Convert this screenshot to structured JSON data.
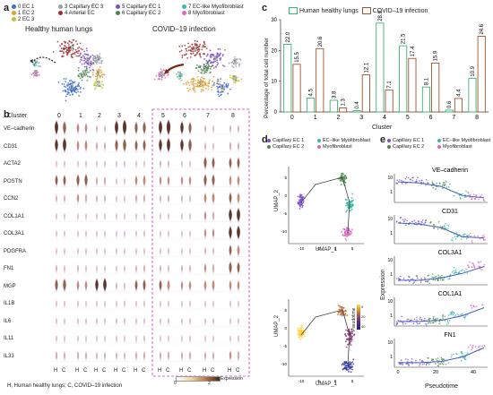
{
  "panel_a": {
    "letter": "a",
    "legend": [
      {
        "num": "0",
        "label": "EC 1",
        "color": "#3b6fd6"
      },
      {
        "num": "1",
        "label": "EC 2",
        "color": "#e0a030"
      },
      {
        "num": "2",
        "label": "EC 3",
        "color": "#b8c640"
      },
      {
        "num": "3",
        "label": "Capillary EC 3",
        "color": "#9aa0a8"
      },
      {
        "num": "4",
        "label": "Arterial EC",
        "color": "#a03030"
      },
      {
        "num": "5",
        "label": "Capillary EC 1",
        "color": "#7b52c8"
      },
      {
        "num": "6",
        "label": "Capillary EC 2",
        "color": "#4a8a50"
      },
      {
        "num": "7",
        "label": "EC-like Myofibroblast",
        "color": "#3cb8a8"
      },
      {
        "num": "8",
        "label": "Myofibroblast",
        "color": "#d868c0"
      }
    ],
    "title_healthy": "Healthy human lungs",
    "title_covid": "COVID–19 infection"
  },
  "panel_b": {
    "letter": "b",
    "cluster_label": "Cluster",
    "clusters": [
      "0",
      "1",
      "2",
      "3",
      "4",
      "5",
      "6",
      "7",
      "8"
    ],
    "genes": [
      "VE–cadherin",
      "CD31",
      "ACTA2",
      "POSTN",
      "CCN2",
      "COL1A1",
      "COL3A1",
      "PDGFRA",
      "FN1",
      "MGP",
      "IL1B",
      "IL6",
      "IL11",
      "IL33"
    ],
    "hc_labels": [
      "H",
      "C"
    ],
    "footnote": "H, Human healthy lungs; C, COVID–19 infection",
    "colorbar_label": "Expression",
    "colorbar_ticks": [
      "0",
      "2"
    ]
  },
  "panel_c": {
    "letter": "c",
    "legend_healthy": "Human healthy lungs",
    "legend_covid": "COVID–19 infection",
    "color_healthy": "#3cb371",
    "color_covid": "#a0522d"
  },
  "chart_data": {
    "type": "bar",
    "categories": [
      "0",
      "1",
      "2",
      "3",
      "4",
      "5",
      "6",
      "7",
      "8"
    ],
    "series": [
      {
        "name": "Human healthy lungs",
        "values": [
          22.0,
          4.5,
          3.8,
          0.4,
          28.9,
          21.5,
          8.1,
          0.6,
          10.9
        ]
      },
      {
        "name": "COVID–19 infection",
        "values": [
          15.5,
          20.6,
          1.3,
          12.1,
          7.1,
          17.4,
          15.9,
          4.4,
          24.6
        ]
      }
    ],
    "value_labels": {
      "healthy": [
        "22.0",
        "4.5",
        "3.8",
        "0.4",
        "28.9",
        "21.5",
        "8.1",
        "0.6",
        "10.9"
      ],
      "covid": [
        "15.5",
        "20.6",
        "1.3",
        "12.1",
        "7.1",
        "17.4",
        "15.9",
        "4.4",
        "24.6"
      ]
    },
    "xlabel": "Cluster",
    "ylabel": "Percentage of total cell number",
    "ylim": [
      0,
      30
    ],
    "yticks": [
      "0",
      "10",
      "20",
      "30"
    ]
  },
  "panel_d": {
    "letter": "d",
    "legend": [
      {
        "label": "Capillary EC 1",
        "color": "#7b52c8"
      },
      {
        "label": "EC–like Myofibroblast",
        "color": "#3cb8a8"
      },
      {
        "label": "Capillary EC 2",
        "color": "#4a8a50"
      },
      {
        "label": "Myofibroblast",
        "color": "#d868c0"
      }
    ],
    "xlabel": "UMAP_1",
    "ylabel": "UMAP_2",
    "xticks": [
      "-10",
      "-5",
      "0",
      "5"
    ],
    "yticks_top": [
      "5",
      "0",
      "-5",
      "-10"
    ],
    "yticks_bottom": [
      "5",
      "0",
      "-5",
      "-10"
    ],
    "pseudotime_label": "Pseudotime",
    "pseudotime_ticks": [
      "0",
      "20",
      "40"
    ]
  },
  "panel_e": {
    "letter": "e",
    "legend": [
      {
        "label": "Capillary EC 1",
        "color": "#7b52c8"
      },
      {
        "label": "EC–like Myofibroblast",
        "color": "#3cb8a8"
      },
      {
        "label": "Capillary EC 2",
        "color": "#4a8a50"
      },
      {
        "label": "Myofibroblast",
        "color": "#d868c0"
      }
    ],
    "genes": [
      "VE–cadherin",
      "CD31",
      "COL3A1",
      "COL1A1",
      "FN1"
    ],
    "ylabel": "Expression",
    "xlabel": "Pseudotime",
    "xticks": [
      "0",
      "20",
      "40"
    ],
    "yticks": [
      "10",
      "1"
    ]
  }
}
